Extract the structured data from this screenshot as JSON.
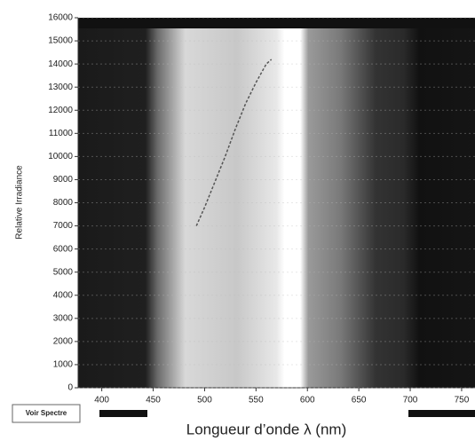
{
  "chart_data": {
    "type": "line",
    "x_label": "Longueur d’onde λ (nm)",
    "y_label": "Relative Irradiance",
    "x": [
      492,
      500,
      510,
      520,
      530,
      540,
      550,
      560,
      565
    ],
    "series": [
      {
        "color": "#555555",
        "values": [
          7000,
          7800,
          8900,
          10000,
          11200,
          12300,
          13200,
          14000,
          14200
        ]
      }
    ],
    "xlim": [
      377,
      763
    ],
    "xticks": [
      400,
      450,
      500,
      550,
      600,
      650,
      700,
      750
    ],
    "ylim": [
      0,
      16000
    ],
    "yticks": [
      0,
      1000,
      2000,
      3000,
      4000,
      5000,
      6000,
      7000,
      8000,
      9000,
      10000,
      11000,
      12000,
      13000,
      14000,
      15000,
      16000
    ],
    "grid": true
  },
  "controls": {
    "button": "Voir Spectre"
  }
}
